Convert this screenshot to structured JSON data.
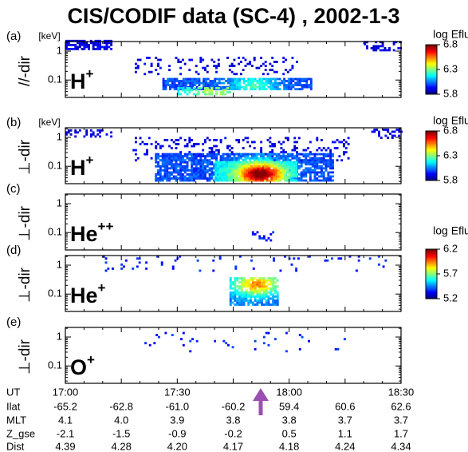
{
  "title": "CIS/CODIF data (SC-4) , 2002-1-3",
  "chart_data": [
    {
      "type": "spectrogram",
      "panel": "(a)",
      "ylabel": "//-dir",
      "yunit": "[keV]",
      "species": "H",
      "charge": "+",
      "log_y": true,
      "ylim": [
        0.025,
        2.15
      ],
      "yticks": [
        1,
        0.1
      ],
      "colorbar": {
        "label": "log Eflux",
        "clim": [
          5.8,
          6.8
        ],
        "cticks": [
          5.8,
          6.3,
          6.8
        ]
      }
    },
    {
      "type": "spectrogram",
      "panel": "(b)",
      "ylabel": "⊥-dir",
      "yunit": "[keV]",
      "species": "H",
      "charge": "+",
      "log_y": true,
      "ylim": [
        0.025,
        2.15
      ],
      "yticks": [
        1,
        0.1
      ],
      "colorbar": {
        "label": "log Eflux",
        "clim": [
          5.8,
          6.8
        ],
        "cticks": [
          5.8,
          6.3,
          6.8
        ]
      }
    },
    {
      "type": "spectrogram",
      "panel": "(c)",
      "ylabel": "⊥-dir",
      "species": "He",
      "charge": "++",
      "log_y": true,
      "ylim": [
        0.025,
        2.15
      ],
      "yticks": [
        1,
        0.1
      ]
    },
    {
      "type": "spectrogram",
      "panel": "(d)",
      "ylabel": "⊥-dir",
      "species": "He",
      "charge": "+",
      "log_y": true,
      "ylim": [
        0.025,
        2.15
      ],
      "yticks": [
        1,
        0.1
      ],
      "colorbar": {
        "label": "log Eflux",
        "clim": [
          5.2,
          6.2
        ],
        "cticks": [
          5.2,
          5.7,
          6.2
        ]
      }
    },
    {
      "type": "spectrogram",
      "panel": "(e)",
      "ylabel": "⊥-dir",
      "species": "O",
      "charge": "+",
      "log_y": true,
      "ylim": [
        0.025,
        2.15
      ],
      "yticks": [
        1,
        0.1
      ]
    }
  ],
  "ephemeris": {
    "time_label": "UT",
    "times": [
      "17:00",
      null,
      "17:30",
      null,
      "18:00",
      null,
      "18:30"
    ],
    "rows": [
      {
        "label": "Ilat",
        "values": [
          "-65.2",
          "-62.8",
          "-61.0",
          "-60.2",
          "59.4",
          "60.6",
          "62.6"
        ]
      },
      {
        "label": "MLT",
        "values": [
          "4.1",
          "4.0",
          "3.9",
          "3.8",
          "3.8",
          "3.7",
          "3.7"
        ]
      },
      {
        "label": "Z_gse",
        "values": [
          "-2.1",
          "-1.5",
          "-0.9",
          "-0.2",
          "0.5",
          "1.1",
          "1.7"
        ]
      },
      {
        "label": "Dist",
        "values": [
          "4.39",
          "4.28",
          "4.20",
          "4.17",
          "4.18",
          "4.24",
          "4.34"
        ]
      }
    ]
  }
}
